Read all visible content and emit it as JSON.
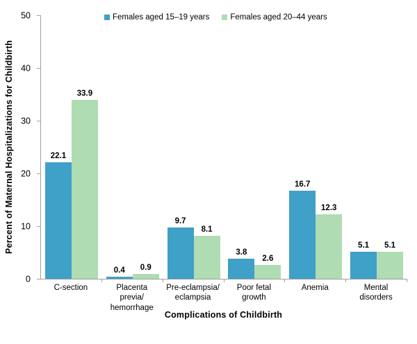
{
  "chart_data": {
    "type": "bar",
    "title": "",
    "xlabel": "Complications of Childbirth",
    "ylabel": "Percent of Maternal Hospitalizations for Childbirth",
    "ylim": [
      0,
      50
    ],
    "yticks": [
      0,
      10,
      20,
      30,
      40,
      50
    ],
    "grid": false,
    "legend_position": "top-center",
    "categories": [
      "C-section",
      "Placenta previa/hemorrhage",
      "Pre-eclampsia/eclampsia",
      "Poor fetal growth",
      "Anemia",
      "Mental disorders"
    ],
    "category_labels": [
      "C-section",
      "Placenta\nprevia/\nhemorrhage",
      "Pre-eclampsia/\neclampsia",
      "Poor fetal\ngrowth",
      "Anemia",
      "Mental\ndisorders"
    ],
    "series": [
      {
        "name": "Females aged 15–19 years",
        "color": "#3FA0C8",
        "values": [
          22.1,
          0.4,
          9.7,
          3.8,
          16.7,
          5.1
        ]
      },
      {
        "name": "Females aged 20–44 years",
        "color": "#AFDCB2",
        "values": [
          33.9,
          0.9,
          8.1,
          2.6,
          12.3,
          5.1
        ]
      }
    ]
  },
  "colors": {
    "axis": "#a0a0a0",
    "text": "#000000",
    "background": "#ffffff"
  }
}
